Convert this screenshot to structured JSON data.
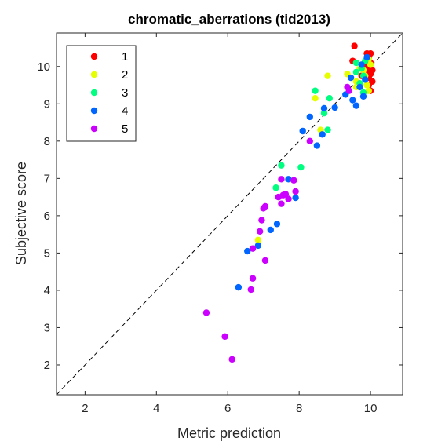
{
  "chart_data": {
    "type": "scatter",
    "title": "chromatic_aberrations (tid2013)",
    "xlabel": "Metric prediction",
    "ylabel": "Subjective score",
    "xlim": [
      1.2,
      10.9
    ],
    "ylim": [
      1.2,
      10.9
    ],
    "xticks": [
      2,
      4,
      6,
      8,
      10
    ],
    "yticks": [
      2,
      3,
      4,
      5,
      6,
      7,
      8,
      9,
      10
    ],
    "grid": false,
    "box": true,
    "reference_line": {
      "style": "dashed",
      "from": [
        1.2,
        1.2
      ],
      "to": [
        10.9,
        10.9
      ],
      "color": "#000000"
    },
    "legend_position": "top-left",
    "series": [
      {
        "name": "1",
        "color": "#ff0000",
        "points": [
          [
            9.55,
            10.55
          ],
          [
            9.9,
            10.35
          ],
          [
            10.0,
            10.35
          ],
          [
            9.95,
            10.25
          ],
          [
            10.0,
            10.1
          ],
          [
            9.95,
            10.0
          ],
          [
            10.05,
            9.9
          ],
          [
            10.0,
            9.8
          ],
          [
            9.95,
            9.7
          ],
          [
            10.05,
            9.6
          ],
          [
            9.95,
            9.5
          ],
          [
            10.0,
            9.35
          ],
          [
            9.5,
            10.15
          ],
          [
            9.85,
            10.05
          ],
          [
            9.9,
            9.9
          ],
          [
            9.75,
            9.75
          ]
        ]
      },
      {
        "name": "2",
        "color": "#e6ff00",
        "points": [
          [
            8.8,
            9.75
          ],
          [
            8.45,
            9.15
          ],
          [
            9.35,
            9.8
          ],
          [
            9.6,
            9.6
          ],
          [
            9.7,
            9.95
          ],
          [
            9.85,
            9.75
          ],
          [
            9.9,
            9.5
          ],
          [
            9.95,
            9.35
          ],
          [
            8.6,
            8.3
          ],
          [
            6.85,
            5.35
          ],
          [
            10.0,
            10.05
          ],
          [
            9.95,
            10.2
          ],
          [
            9.8,
            9.9
          ],
          [
            9.6,
            9.45
          ]
        ]
      },
      {
        "name": "3",
        "color": "#00ff80",
        "points": [
          [
            7.5,
            7.35
          ],
          [
            8.05,
            7.3
          ],
          [
            7.35,
            6.75
          ],
          [
            8.45,
            9.35
          ],
          [
            8.7,
            8.75
          ],
          [
            8.85,
            9.15
          ],
          [
            8.8,
            8.3
          ],
          [
            9.6,
            10.1
          ],
          [
            9.75,
            9.95
          ],
          [
            9.8,
            9.75
          ],
          [
            9.7,
            9.55
          ],
          [
            9.8,
            9.3
          ],
          [
            9.85,
            10.15
          ],
          [
            9.6,
            9.85
          ]
        ]
      },
      {
        "name": "4",
        "color": "#0066ff",
        "points": [
          [
            6.3,
            4.08
          ],
          [
            6.55,
            5.05
          ],
          [
            6.85,
            5.2
          ],
          [
            7.2,
            5.62
          ],
          [
            7.38,
            5.78
          ],
          [
            7.7,
            6.98
          ],
          [
            7.9,
            6.48
          ],
          [
            8.1,
            8.27
          ],
          [
            8.3,
            8.65
          ],
          [
            8.5,
            7.88
          ],
          [
            8.65,
            8.18
          ],
          [
            8.7,
            8.88
          ],
          [
            9.0,
            8.9
          ],
          [
            9.3,
            9.25
          ],
          [
            9.5,
            9.1
          ],
          [
            9.6,
            8.95
          ],
          [
            9.7,
            9.45
          ],
          [
            9.8,
            9.2
          ],
          [
            9.45,
            9.7
          ],
          [
            9.85,
            9.65
          ],
          [
            9.9,
            10.25
          ],
          [
            9.75,
            10.05
          ]
        ]
      },
      {
        "name": "5",
        "color": "#cc00ff",
        "points": [
          [
            5.4,
            3.4
          ],
          [
            5.92,
            2.76
          ],
          [
            6.12,
            2.15
          ],
          [
            6.65,
            4.02
          ],
          [
            6.7,
            4.32
          ],
          [
            6.7,
            5.12
          ],
          [
            6.9,
            5.58
          ],
          [
            6.95,
            5.88
          ],
          [
            7.0,
            6.2
          ],
          [
            7.05,
            6.25
          ],
          [
            7.05,
            4.8
          ],
          [
            7.42,
            6.5
          ],
          [
            7.5,
            6.32
          ],
          [
            7.5,
            6.98
          ],
          [
            7.55,
            6.55
          ],
          [
            7.62,
            6.58
          ],
          [
            7.7,
            6.45
          ],
          [
            7.85,
            6.95
          ],
          [
            7.9,
            6.65
          ],
          [
            8.3,
            8.0
          ],
          [
            9.35,
            9.45
          ],
          [
            9.4,
            9.35
          ]
        ]
      }
    ]
  }
}
